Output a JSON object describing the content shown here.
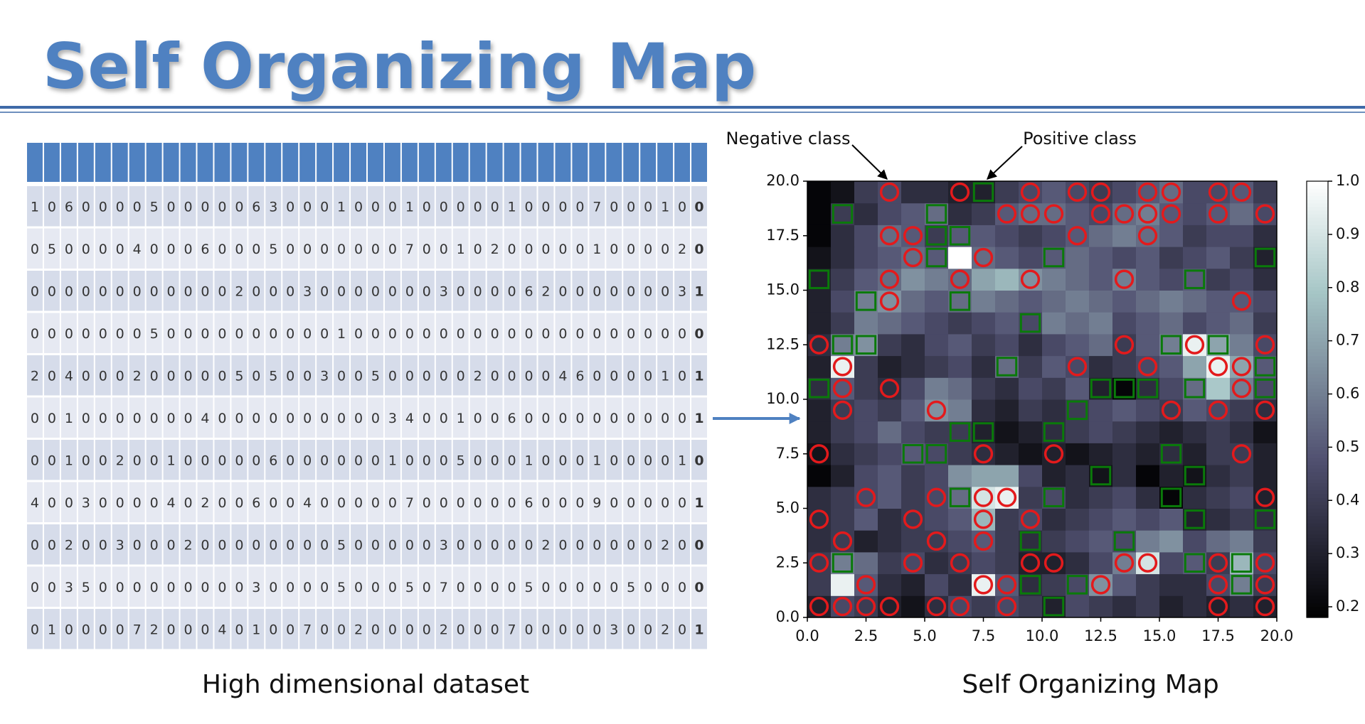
{
  "title": "Self Organizing Map",
  "table": {
    "caption": "High dimensional dataset",
    "rows": [
      {
        "features": [
          1,
          0,
          6,
          0,
          0,
          0,
          0,
          5,
          0,
          0,
          0,
          0,
          0,
          6,
          3,
          0,
          0,
          0,
          1,
          0,
          0,
          0,
          1,
          0,
          0,
          0,
          0,
          0,
          1,
          0,
          0,
          0,
          0,
          7,
          0,
          0,
          0,
          1,
          0
        ],
        "label": 0
      },
      {
        "features": [
          0,
          5,
          0,
          0,
          0,
          0,
          4,
          0,
          0,
          0,
          6,
          0,
          0,
          0,
          5,
          0,
          0,
          0,
          0,
          0,
          0,
          0,
          7,
          0,
          0,
          1,
          0,
          2,
          0,
          0,
          0,
          0,
          0,
          1,
          0,
          0,
          0,
          0,
          2
        ],
        "label": 0
      },
      {
        "features": [
          0,
          0,
          0,
          0,
          0,
          0,
          0,
          0,
          0,
          0,
          0,
          0,
          2,
          0,
          0,
          0,
          3,
          0,
          0,
          0,
          0,
          0,
          0,
          0,
          3,
          0,
          0,
          0,
          0,
          6,
          2,
          0,
          0,
          0,
          0,
          0,
          0,
          0,
          3
        ],
        "label": 1
      },
      {
        "features": [
          0,
          0,
          0,
          0,
          0,
          0,
          0,
          5,
          0,
          0,
          0,
          0,
          0,
          0,
          0,
          0,
          0,
          0,
          1,
          0,
          0,
          0,
          0,
          0,
          0,
          0,
          0,
          0,
          0,
          0,
          0,
          0,
          0,
          0,
          0,
          0,
          0,
          0,
          0
        ],
        "label": 0
      },
      {
        "features": [
          2,
          0,
          4,
          0,
          0,
          0,
          2,
          0,
          0,
          0,
          0,
          0,
          5,
          0,
          5,
          0,
          0,
          3,
          0,
          0,
          5,
          0,
          0,
          0,
          0,
          0,
          2,
          0,
          0,
          0,
          0,
          4,
          6,
          0,
          0,
          0,
          0,
          1,
          0
        ],
        "label": 1
      },
      {
        "features": [
          0,
          0,
          1,
          0,
          0,
          0,
          0,
          0,
          0,
          0,
          4,
          0,
          0,
          0,
          0,
          0,
          0,
          0,
          0,
          0,
          0,
          3,
          4,
          0,
          0,
          1,
          0,
          0,
          6,
          0,
          0,
          0,
          0,
          0,
          0,
          0,
          0,
          0,
          0
        ],
        "label": 1
      },
      {
        "features": [
          0,
          0,
          1,
          0,
          0,
          2,
          0,
          0,
          1,
          0,
          0,
          0,
          0,
          0,
          6,
          0,
          0,
          0,
          0,
          0,
          0,
          1,
          0,
          0,
          0,
          5,
          0,
          0,
          0,
          1,
          0,
          0,
          0,
          1,
          0,
          0,
          0,
          0,
          1
        ],
        "label": 0
      },
      {
        "features": [
          4,
          0,
          0,
          3,
          0,
          0,
          0,
          0,
          4,
          0,
          2,
          0,
          0,
          6,
          0,
          0,
          4,
          0,
          0,
          0,
          0,
          0,
          7,
          0,
          0,
          0,
          0,
          0,
          0,
          6,
          0,
          0,
          0,
          9,
          0,
          0,
          0,
          0,
          0
        ],
        "label": 1
      },
      {
        "features": [
          0,
          0,
          2,
          0,
          0,
          3,
          0,
          0,
          0,
          2,
          0,
          0,
          0,
          0,
          0,
          0,
          0,
          0,
          5,
          0,
          0,
          0,
          0,
          0,
          3,
          0,
          0,
          0,
          0,
          0,
          2,
          0,
          0,
          0,
          0,
          0,
          0,
          2,
          0
        ],
        "label": 0
      },
      {
        "features": [
          0,
          0,
          3,
          5,
          0,
          0,
          0,
          0,
          0,
          0,
          0,
          0,
          0,
          3,
          0,
          0,
          0,
          0,
          5,
          0,
          0,
          0,
          5,
          0,
          7,
          0,
          0,
          0,
          0,
          5,
          0,
          0,
          0,
          0,
          0,
          5,
          0,
          0,
          0
        ],
        "label": 0
      },
      {
        "features": [
          0,
          1,
          0,
          0,
          0,
          0,
          7,
          2,
          0,
          0,
          0,
          4,
          0,
          1,
          0,
          0,
          7,
          0,
          0,
          2,
          0,
          0,
          0,
          0,
          2,
          0,
          0,
          0,
          7,
          0,
          0,
          0,
          0,
          0,
          3,
          0,
          0,
          2,
          0
        ],
        "label": 1
      }
    ]
  },
  "chart_data": {
    "type": "heatmap",
    "caption": "Self Organizing Map",
    "annotations": [
      "Negative class",
      "Positive class"
    ],
    "colormap": "bone",
    "clim": [
      0.18,
      1.0
    ],
    "cticks": [
      0.2,
      0.3,
      0.4,
      0.5,
      0.6,
      0.7,
      0.8,
      0.9,
      {
        "value": 1,
        "label": "1.0"
      }
    ],
    "xlim": [
      0,
      20
    ],
    "ylim": [
      0,
      20
    ],
    "xticks": [
      {
        "value": 0,
        "label": "0.0"
      },
      2.5,
      {
        "value": 5,
        "label": "5.0"
      },
      7.5,
      {
        "value": 10,
        "label": "10.0"
      },
      12.5,
      {
        "value": 15,
        "label": "15.0"
      },
      17.5,
      {
        "value": 20,
        "label": "20.0"
      }
    ],
    "yticks": [
      {
        "value": 0,
        "label": "0.0"
      },
      2.5,
      {
        "value": 5,
        "label": "5.0"
      },
      7.5,
      {
        "value": 10,
        "label": "10.0"
      },
      12.5,
      {
        "value": 15,
        "label": "15.0"
      },
      17.5,
      {
        "value": 20,
        "label": "20.0"
      }
    ],
    "values": [
      [
        0.3,
        0.45,
        0.4,
        0.3,
        0.25,
        0.35,
        0.45,
        0.4,
        0.45,
        0.4,
        0.3,
        0.45,
        0.4,
        0.35,
        0.4,
        0.3,
        0.35,
        0.3,
        0.35,
        0.3
      ],
      [
        0.4,
        0.95,
        0.5,
        0.35,
        0.3,
        0.45,
        0.35,
        0.95,
        0.5,
        0.35,
        0.4,
        0.45,
        0.65,
        0.5,
        0.4,
        0.35,
        0.35,
        0.45,
        0.6,
        0.4
      ],
      [
        0.4,
        0.6,
        0.55,
        0.4,
        0.45,
        0.35,
        0.4,
        0.45,
        0.4,
        0.3,
        0.3,
        0.35,
        0.45,
        0.6,
        0.9,
        0.45,
        0.5,
        0.4,
        0.75,
        0.45
      ],
      [
        0.35,
        0.4,
        0.3,
        0.35,
        0.4,
        0.4,
        0.45,
        0.5,
        0.4,
        0.35,
        0.4,
        0.45,
        0.5,
        0.45,
        0.6,
        0.65,
        0.45,
        0.55,
        0.6,
        0.4
      ],
      [
        0.35,
        0.4,
        0.5,
        0.35,
        0.4,
        0.45,
        0.5,
        0.75,
        0.4,
        0.45,
        0.35,
        0.4,
        0.45,
        0.5,
        0.45,
        0.5,
        0.3,
        0.35,
        0.4,
        0.35
      ],
      [
        0.35,
        0.4,
        0.45,
        0.5,
        0.4,
        0.45,
        0.55,
        0.9,
        0.95,
        0.4,
        0.45,
        0.35,
        0.4,
        0.45,
        0.35,
        0.2,
        0.35,
        0.4,
        0.45,
        0.3
      ],
      [
        0.2,
        0.3,
        0.45,
        0.5,
        0.4,
        0.45,
        0.65,
        0.7,
        0.7,
        0.45,
        0.3,
        0.35,
        0.25,
        0.35,
        0.2,
        0.3,
        0.25,
        0.35,
        0.4,
        0.3
      ],
      [
        0.25,
        0.35,
        0.4,
        0.45,
        0.5,
        0.45,
        0.4,
        0.35,
        0.3,
        0.25,
        0.3,
        0.25,
        0.3,
        0.35,
        0.3,
        0.35,
        0.3,
        0.4,
        0.4,
        0.3
      ],
      [
        0.3,
        0.4,
        0.45,
        0.55,
        0.45,
        0.4,
        0.4,
        0.3,
        0.25,
        0.3,
        0.35,
        0.4,
        0.45,
        0.4,
        0.35,
        0.3,
        0.35,
        0.4,
        0.35,
        0.25
      ],
      [
        0.3,
        0.4,
        0.45,
        0.4,
        0.5,
        0.65,
        0.6,
        0.35,
        0.3,
        0.4,
        0.35,
        0.4,
        0.45,
        0.5,
        0.45,
        0.4,
        0.5,
        0.45,
        0.4,
        0.35
      ],
      [
        0.35,
        0.5,
        0.4,
        0.35,
        0.45,
        0.6,
        0.55,
        0.4,
        0.35,
        0.45,
        0.4,
        0.5,
        0.3,
        0.2,
        0.35,
        0.45,
        0.55,
        0.8,
        0.6,
        0.45
      ],
      [
        0.3,
        0.95,
        0.4,
        0.3,
        0.35,
        0.4,
        0.45,
        0.35,
        0.55,
        0.4,
        0.5,
        0.45,
        0.35,
        0.4,
        0.45,
        0.5,
        0.7,
        0.95,
        0.7,
        0.5
      ],
      [
        0.35,
        0.6,
        0.65,
        0.4,
        0.35,
        0.45,
        0.5,
        0.4,
        0.45,
        0.35,
        0.45,
        0.5,
        0.55,
        0.4,
        0.5,
        0.6,
        0.95,
        0.7,
        0.6,
        0.45
      ],
      [
        0.3,
        0.4,
        0.6,
        0.55,
        0.5,
        0.45,
        0.4,
        0.45,
        0.5,
        0.45,
        0.6,
        0.55,
        0.6,
        0.45,
        0.5,
        0.55,
        0.45,
        0.5,
        0.55,
        0.4
      ],
      [
        0.3,
        0.45,
        0.6,
        0.65,
        0.55,
        0.5,
        0.55,
        0.6,
        0.55,
        0.5,
        0.55,
        0.6,
        0.55,
        0.5,
        0.55,
        0.6,
        0.55,
        0.5,
        0.5,
        0.45
      ],
      [
        0.3,
        0.4,
        0.5,
        0.55,
        0.65,
        0.6,
        0.55,
        0.7,
        0.75,
        0.65,
        0.6,
        0.55,
        0.5,
        0.6,
        0.5,
        0.45,
        0.5,
        0.4,
        0.45,
        0.35
      ],
      [
        0.25,
        0.35,
        0.45,
        0.5,
        0.55,
        0.5,
        1.0,
        0.55,
        0.5,
        0.45,
        0.5,
        0.55,
        0.5,
        0.45,
        0.5,
        0.4,
        0.45,
        0.5,
        0.4,
        0.3
      ],
      [
        0.2,
        0.35,
        0.45,
        0.55,
        0.5,
        0.4,
        0.5,
        0.5,
        0.45,
        0.4,
        0.45,
        0.5,
        0.55,
        0.6,
        0.55,
        0.5,
        0.4,
        0.45,
        0.45,
        0.35
      ],
      [
        0.2,
        0.4,
        0.35,
        0.45,
        0.5,
        0.55,
        0.35,
        0.4,
        0.5,
        0.55,
        0.55,
        0.5,
        0.45,
        0.55,
        0.6,
        0.5,
        0.45,
        0.5,
        0.55,
        0.45
      ],
      [
        0.2,
        0.25,
        0.4,
        0.45,
        0.35,
        0.35,
        0.3,
        0.3,
        0.4,
        0.45,
        0.5,
        0.45,
        0.4,
        0.45,
        0.5,
        0.55,
        0.45,
        0.45,
        0.5,
        0.4
      ]
    ],
    "series": [
      {
        "marker": "circle",
        "color": "#e31a1c",
        "x": [
          3.5,
          6.5,
          9.5,
          11.5,
          12.5,
          14.5,
          15.5,
          17.5,
          18.5,
          8.5,
          9.5,
          10.5,
          12.5,
          13.5,
          14.5,
          15.5,
          17.5,
          19.5,
          3.5,
          4.5,
          11.5,
          14.5,
          4.5,
          7.5,
          3.5,
          6.5,
          9.5,
          13.5,
          3.5,
          18.5,
          0.5,
          13.5,
          16.5,
          19.5,
          1.5,
          11.5,
          14.5,
          17.5,
          18.5,
          1.5,
          3.5,
          18.5,
          1.5,
          5.5,
          15.5,
          17.5,
          19.5,
          0.5,
          7.5,
          10.5,
          18.5,
          2.5,
          5.5,
          7.5,
          8.5,
          19.5,
          0.5,
          4.5,
          7.5,
          9.5,
          1.5,
          5.5,
          7.5,
          0.5,
          4.5,
          6.5,
          9.5,
          10.5,
          13.5,
          14.5,
          17.5,
          19.5,
          2.5,
          7.5,
          8.5,
          12.5,
          17.5,
          19.5,
          0.5,
          1.5,
          2.5,
          3.5,
          5.5,
          6.5,
          8.5,
          17.5,
          19.5
        ],
        "y": [
          19.5,
          19.5,
          19.5,
          19.5,
          19.5,
          19.5,
          19.5,
          19.5,
          19.5,
          18.5,
          18.5,
          18.5,
          18.5,
          18.5,
          18.5,
          18.5,
          18.5,
          18.5,
          17.5,
          17.5,
          17.5,
          17.5,
          16.5,
          16.5,
          15.5,
          15.5,
          15.5,
          15.5,
          14.5,
          14.5,
          12.5,
          12.5,
          12.5,
          12.5,
          11.5,
          11.5,
          11.5,
          11.5,
          11.5,
          10.5,
          10.5,
          10.5,
          9.5,
          9.5,
          9.5,
          9.5,
          9.5,
          7.5,
          7.5,
          7.5,
          7.5,
          5.5,
          5.5,
          5.5,
          5.5,
          5.5,
          4.5,
          4.5,
          4.5,
          4.5,
          3.5,
          3.5,
          3.5,
          2.5,
          2.5,
          2.5,
          2.5,
          2.5,
          2.5,
          2.5,
          2.5,
          2.5,
          1.5,
          1.5,
          1.5,
          1.5,
          1.5,
          1.5,
          0.5,
          0.5,
          0.5,
          0.5,
          0.5,
          0.5,
          0.5,
          0.5,
          0.5
        ]
      },
      {
        "marker": "square",
        "color": "#0a7a0a",
        "x": [
          7.5,
          1.5,
          5.5,
          5.5,
          6.5,
          5.5,
          10.5,
          19.5,
          0.5,
          16.5,
          2.5,
          6.5,
          9.5,
          1.5,
          2.5,
          15.5,
          17.5,
          8.5,
          19.5,
          0.5,
          12.5,
          13.5,
          14.5,
          16.5,
          19.5,
          11.5,
          6.5,
          7.5,
          10.5,
          4.5,
          5.5,
          15.5,
          12.5,
          16.5,
          6.5,
          10.5,
          15.5,
          16.5,
          19.5,
          9.5,
          13.5,
          1.5,
          16.5,
          18.5,
          9.5,
          11.5,
          18.5,
          10.5
        ],
        "y": [
          19.5,
          18.5,
          18.5,
          17.5,
          17.5,
          16.5,
          16.5,
          16.5,
          15.5,
          15.5,
          14.5,
          14.5,
          13.5,
          12.5,
          12.5,
          12.5,
          12.5,
          11.5,
          11.5,
          10.5,
          10.5,
          10.5,
          10.5,
          10.5,
          10.5,
          9.5,
          8.5,
          8.5,
          8.5,
          7.5,
          7.5,
          7.5,
          6.5,
          6.5,
          5.5,
          5.5,
          5.5,
          4.5,
          4.5,
          3.5,
          3.5,
          2.5,
          2.5,
          2.5,
          1.5,
          1.5,
          1.5,
          0.5
        ]
      }
    ]
  }
}
